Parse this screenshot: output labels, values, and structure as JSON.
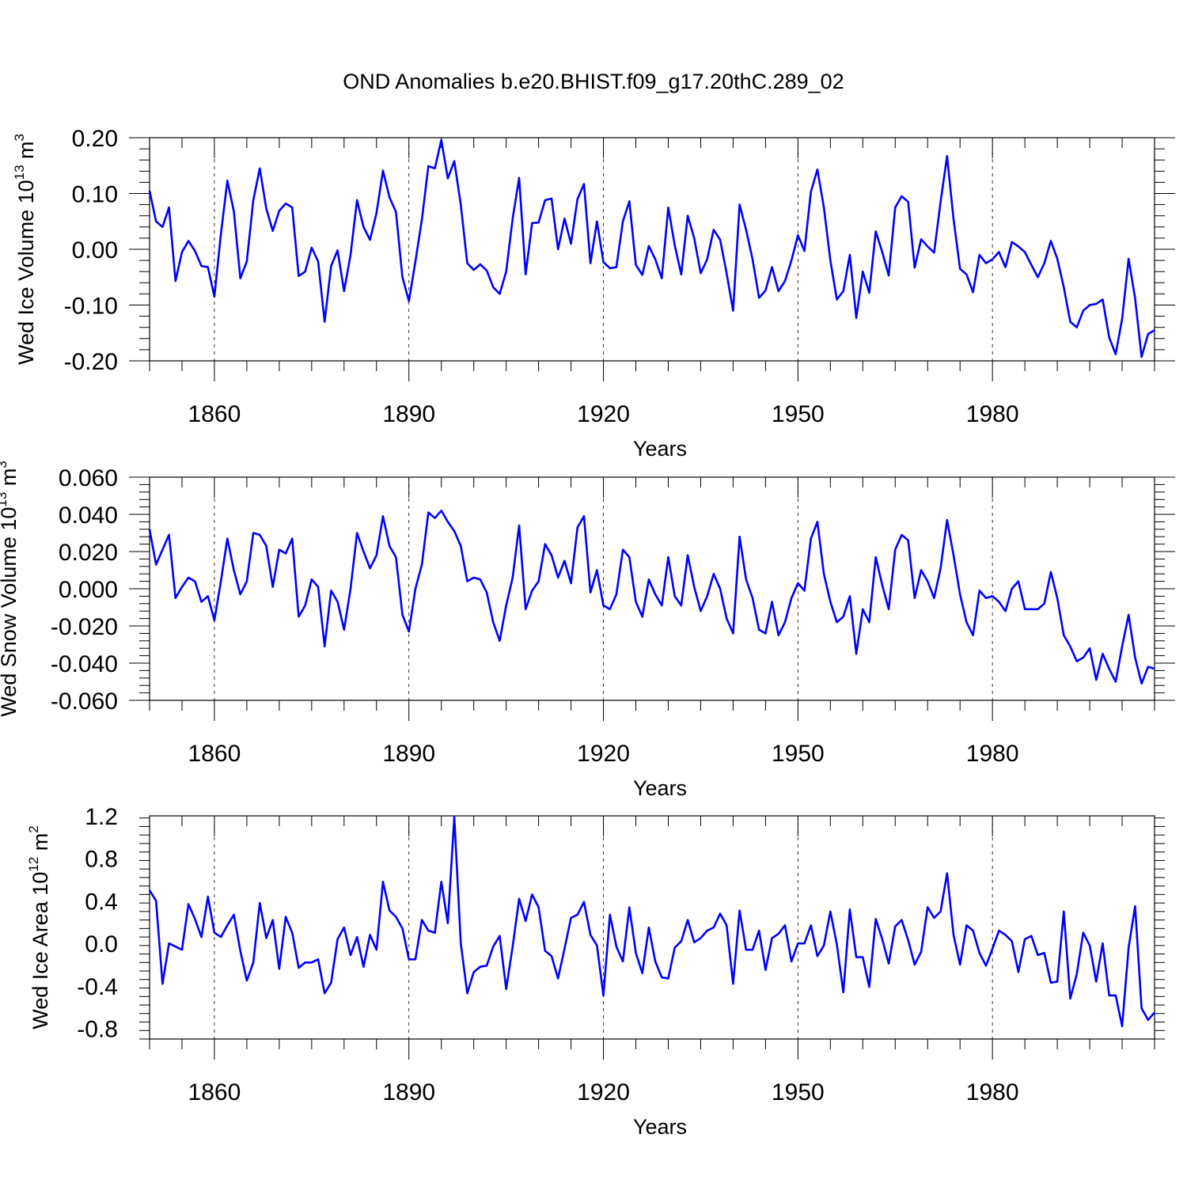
{
  "title": "OND Anomalies b.e20.BHIST.f09_g17.20thC.289_02",
  "series_color": "#0000ff",
  "chart_data": [
    {
      "type": "line",
      "title": "OND Anomalies b.e20.BHIST.f09_g17.20thC.289_02",
      "xlabel": "Years",
      "ylabel_main": "Wed Ice Volume 10",
      "ylabel_exp": "13",
      "ylabel_unit": "m",
      "ylabel_unit_exp": "3",
      "x_start": 1850,
      "x_end": 2005,
      "xlim": [
        1850,
        2005
      ],
      "ylim": [
        -0.2,
        0.2
      ],
      "xticks": [
        1860,
        1890,
        1920,
        1950,
        1980
      ],
      "xtick_labels": [
        "1860",
        "1890",
        "1920",
        "1950",
        "1980"
      ],
      "yticks": [
        -0.2,
        -0.1,
        0.0,
        0.1,
        0.2
      ],
      "ytick_labels": [
        "-0.20",
        "-0.10",
        "0.00",
        "0.10",
        "0.20"
      ],
      "values": [
        0.105,
        0.05,
        0.04,
        0.075,
        -0.057,
        -0.005,
        0.015,
        -0.003,
        -0.03,
        -0.032,
        -0.085,
        0.027,
        0.123,
        0.068,
        -0.052,
        -0.022,
        0.088,
        0.145,
        0.073,
        0.033,
        0.069,
        0.082,
        0.075,
        -0.048,
        -0.04,
        0.003,
        -0.022,
        -0.13,
        -0.03,
        -0.002,
        -0.075,
        -0.01,
        0.088,
        0.04,
        0.017,
        0.065,
        0.141,
        0.093,
        0.067,
        -0.05,
        -0.093,
        -0.022,
        0.053,
        0.149,
        0.145,
        0.196,
        0.127,
        0.158,
        0.08,
        -0.025,
        -0.037,
        -0.027,
        -0.038,
        -0.068,
        -0.08,
        -0.04,
        0.055,
        0.128,
        -0.045,
        0.047,
        0.048,
        0.088,
        0.091,
        0.0,
        0.055,
        0.01,
        0.09,
        0.117,
        -0.025,
        0.05,
        -0.023,
        -0.034,
        -0.032,
        0.05,
        0.086,
        -0.028,
        -0.046,
        0.006,
        -0.018,
        -0.052,
        0.075,
        0.007,
        -0.045,
        0.06,
        0.02,
        -0.043,
        -0.018,
        0.035,
        0.017,
        -0.043,
        -0.11,
        0.08,
        0.035,
        -0.018,
        -0.087,
        -0.074,
        -0.032,
        -0.075,
        -0.057,
        -0.02,
        0.025,
        -0.003,
        0.103,
        0.143,
        0.075,
        -0.02,
        -0.09,
        -0.075,
        -0.01,
        -0.123,
        -0.04,
        -0.078,
        0.032,
        -0.005,
        -0.047,
        0.075,
        0.095,
        0.085,
        -0.033,
        0.018,
        0.005,
        -0.006,
        0.085,
        0.167,
        0.054,
        -0.035,
        -0.045,
        -0.077,
        -0.01,
        -0.025,
        -0.018,
        -0.005,
        -0.032,
        0.013,
        0.005,
        -0.005,
        -0.028,
        -0.05,
        -0.025,
        0.015,
        -0.017,
        -0.068,
        -0.13,
        -0.14,
        -0.11,
        -0.1,
        -0.098,
        -0.09,
        -0.158,
        -0.188,
        -0.125,
        -0.017,
        -0.088,
        -0.193,
        -0.152,
        -0.145
      ]
    },
    {
      "type": "line",
      "title": "",
      "xlabel": "Years",
      "ylabel_main": "Wed Snow Volume 10",
      "ylabel_exp": "13",
      "ylabel_unit": "m",
      "ylabel_unit_exp": "3",
      "x_start": 1850,
      "x_end": 2005,
      "xlim": [
        1850,
        2005
      ],
      "ylim": [
        -0.06,
        0.06
      ],
      "xticks": [
        1860,
        1890,
        1920,
        1950,
        1980
      ],
      "xtick_labels": [
        "1860",
        "1890",
        "1920",
        "1950",
        "1980"
      ],
      "yticks": [
        -0.06,
        -0.04,
        -0.02,
        0.0,
        0.02,
        0.04,
        0.06
      ],
      "ytick_labels": [
        "-0.060",
        "-0.040",
        "-0.020",
        "0.000",
        "0.020",
        "0.040",
        "0.060"
      ],
      "values": [
        0.032,
        0.013,
        0.021,
        0.029,
        -0.005,
        0.001,
        0.006,
        0.004,
        -0.007,
        -0.004,
        -0.017,
        0.004,
        0.027,
        0.01,
        -0.003,
        0.004,
        0.03,
        0.029,
        0.023,
        0.001,
        0.021,
        0.019,
        0.027,
        -0.015,
        -0.009,
        0.005,
        0.001,
        -0.031,
        -0.001,
        -0.007,
        -0.022,
        0.0,
        0.03,
        0.02,
        0.011,
        0.018,
        0.039,
        0.023,
        0.017,
        -0.014,
        -0.023,
        0.0,
        0.013,
        0.041,
        0.038,
        0.042,
        0.036,
        0.031,
        0.023,
        0.004,
        0.006,
        0.005,
        -0.002,
        -0.018,
        -0.028,
        -0.009,
        0.006,
        0.034,
        -0.011,
        -0.001,
        0.004,
        0.024,
        0.018,
        0.006,
        0.015,
        0.003,
        0.033,
        0.039,
        -0.002,
        0.01,
        -0.009,
        -0.011,
        -0.003,
        0.021,
        0.017,
        -0.007,
        -0.015,
        0.005,
        -0.003,
        -0.009,
        0.017,
        -0.004,
        -0.009,
        0.018,
        0.001,
        -0.012,
        -0.004,
        0.008,
        0.0,
        -0.016,
        -0.024,
        0.028,
        0.005,
        -0.005,
        -0.022,
        -0.024,
        -0.007,
        -0.025,
        -0.018,
        -0.005,
        0.003,
        -0.001,
        0.027,
        0.036,
        0.008,
        -0.007,
        -0.018,
        -0.015,
        -0.004,
        -0.035,
        -0.011,
        -0.018,
        0.017,
        0.002,
        -0.011,
        0.021,
        0.029,
        0.026,
        -0.005,
        0.01,
        0.004,
        -0.005,
        0.011,
        0.037,
        0.018,
        -0.003,
        -0.018,
        -0.025,
        -0.001,
        -0.005,
        -0.004,
        -0.007,
        -0.012,
        0.0,
        0.004,
        -0.011,
        -0.011,
        -0.011,
        -0.008,
        0.009,
        -0.005,
        -0.025,
        -0.031,
        -0.039,
        -0.037,
        -0.032,
        -0.049,
        -0.035,
        -0.043,
        -0.05,
        -0.031,
        -0.014,
        -0.037,
        -0.051,
        -0.042,
        -0.043
      ]
    },
    {
      "type": "line",
      "title": "",
      "xlabel": "Years",
      "ylabel_main": "Wed Ice Area 10",
      "ylabel_exp": "12",
      "ylabel_unit": "m",
      "ylabel_unit_exp": "2",
      "x_start": 1850,
      "x_end": 2005,
      "xlim": [
        1850,
        2005
      ],
      "ylim": [
        -0.9,
        1.2
      ],
      "xticks": [
        1860,
        1890,
        1920,
        1950,
        1980
      ],
      "xtick_labels": [
        "1860",
        "1890",
        "1920",
        "1950",
        "1980"
      ],
      "yticks": [
        -0.8,
        -0.4,
        0.0,
        0.4,
        0.8,
        1.2
      ],
      "ytick_labels": [
        "-0.8",
        "-0.4",
        "0.0",
        "0.4",
        "0.8",
        "1.2"
      ],
      "values": [
        0.5,
        0.4,
        -0.38,
        0.0,
        -0.03,
        -0.06,
        0.37,
        0.23,
        0.06,
        0.44,
        0.1,
        0.06,
        0.17,
        0.27,
        -0.07,
        -0.35,
        -0.18,
        0.38,
        0.05,
        0.22,
        -0.24,
        0.25,
        0.1,
        -0.23,
        -0.18,
        -0.18,
        -0.15,
        -0.47,
        -0.37,
        0.04,
        0.15,
        -0.11,
        0.06,
        -0.22,
        0.08,
        -0.06,
        0.58,
        0.31,
        0.25,
        0.14,
        -0.15,
        -0.15,
        0.22,
        0.12,
        0.1,
        0.58,
        0.19,
        1.19,
        0.0,
        -0.47,
        -0.27,
        -0.22,
        -0.21,
        -0.03,
        0.07,
        -0.43,
        -0.03,
        0.42,
        0.21,
        0.46,
        0.34,
        -0.07,
        -0.12,
        -0.33,
        -0.05,
        0.24,
        0.27,
        0.39,
        0.08,
        -0.02,
        -0.49,
        0.27,
        -0.03,
        -0.17,
        0.34,
        -0.09,
        -0.28,
        0.15,
        -0.17,
        -0.32,
        -0.33,
        -0.04,
        0.02,
        0.22,
        0.01,
        0.05,
        0.12,
        0.15,
        0.28,
        0.17,
        -0.38,
        0.31,
        -0.06,
        -0.06,
        0.12,
        -0.25,
        0.05,
        0.09,
        0.17,
        -0.17,
        0.0,
        0.0,
        0.17,
        -0.12,
        -0.02,
        0.3,
        -0.01,
        -0.46,
        0.32,
        -0.13,
        -0.13,
        -0.41,
        0.23,
        0.04,
        -0.19,
        0.16,
        0.22,
        0.03,
        -0.2,
        -0.08,
        0.34,
        0.24,
        0.3,
        0.66,
        0.08,
        -0.2,
        0.17,
        0.12,
        -0.09,
        -0.21,
        -0.05,
        0.12,
        0.08,
        0.02,
        -0.27,
        0.04,
        0.07,
        -0.11,
        -0.09,
        -0.37,
        -0.36,
        0.3,
        -0.52,
        -0.29,
        0.1,
        -0.02,
        -0.36,
        0.0,
        -0.49,
        -0.49,
        -0.78,
        -0.04,
        0.35,
        -0.61,
        -0.72,
        -0.65
      ]
    }
  ]
}
